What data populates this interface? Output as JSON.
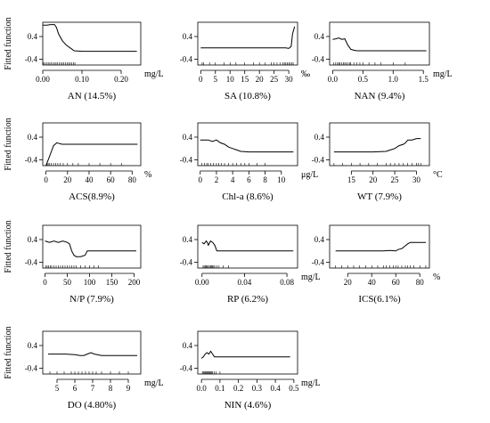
{
  "chart_data": [
    {
      "type": "line",
      "title": "AN (14.5%)",
      "unit": "mg/L",
      "ylabel": "Fitted function",
      "xlim": [
        0,
        0.25
      ],
      "ylim": [
        -0.6,
        0.9
      ],
      "xticks": [
        "0.00",
        "0.10",
        "0.20"
      ],
      "xtick_values": [
        0,
        0.1,
        0.2
      ],
      "yticks": [
        "-0.4",
        "0.4"
      ],
      "ytick_values": [
        -0.4,
        0.4
      ],
      "x": [
        0.0,
        0.01,
        0.02,
        0.03,
        0.035,
        0.04,
        0.05,
        0.06,
        0.07,
        0.08,
        0.1,
        0.15,
        0.2,
        0.24
      ],
      "y": [
        0.8,
        0.8,
        0.82,
        0.82,
        0.72,
        0.5,
        0.25,
        0.1,
        0.0,
        -0.1,
        -0.12,
        -0.12,
        -0.12,
        -0.12
      ],
      "rug": [
        0.002,
        0.006,
        0.01,
        0.014,
        0.018,
        0.022,
        0.026,
        0.03,
        0.034,
        0.038,
        0.042,
        0.046,
        0.05,
        0.054,
        0.058,
        0.062,
        0.066,
        0.07,
        0.074,
        0.078,
        0.082
      ]
    },
    {
      "type": "line",
      "title": "SA (10.8%)",
      "unit": "‰",
      "ylabel": "",
      "xlim": [
        -1,
        33
      ],
      "ylim": [
        -0.6,
        0.9
      ],
      "xticks": [
        "0",
        "5",
        "10",
        "15",
        "20",
        "25",
        "30"
      ],
      "xtick_values": [
        0,
        5,
        10,
        15,
        20,
        25,
        30
      ],
      "yticks": [
        "-0.4",
        "0.4"
      ],
      "ytick_values": [
        -0.4,
        0.4
      ],
      "x": [
        0,
        5,
        10,
        15,
        20,
        25,
        29,
        30,
        30.8,
        31.3,
        32
      ],
      "y": [
        0.0,
        0.0,
        0.0,
        0.0,
        0.0,
        0.0,
        0.0,
        -0.02,
        0.05,
        0.5,
        0.75
      ],
      "rug": [
        0.5,
        1,
        3,
        5,
        8,
        10,
        12,
        15,
        18,
        20,
        22,
        24,
        25,
        26,
        27,
        28,
        28.5,
        29,
        29.5,
        30,
        30.5,
        31,
        31.5
      ]
    },
    {
      "type": "line",
      "title": "NAN (9.4%)",
      "unit": "mg/L",
      "ylabel": "",
      "xlim": [
        -0.05,
        1.6
      ],
      "ylim": [
        -0.6,
        0.9
      ],
      "xticks": [
        "0.0",
        "0.5",
        "1.0",
        "1.5"
      ],
      "xtick_values": [
        0,
        0.5,
        1.0,
        1.5
      ],
      "yticks": [
        "-0.4",
        "0.4"
      ],
      "ytick_values": [
        -0.4,
        0.4
      ],
      "x": [
        0.0,
        0.05,
        0.1,
        0.15,
        0.2,
        0.25,
        0.3,
        0.35,
        0.4,
        0.5,
        1.0,
        1.55
      ],
      "y": [
        0.3,
        0.32,
        0.35,
        0.3,
        0.32,
        0.1,
        -0.05,
        -0.08,
        -0.1,
        -0.1,
        -0.1,
        -0.1
      ],
      "rug": [
        0.02,
        0.05,
        0.08,
        0.1,
        0.12,
        0.15,
        0.18,
        0.2,
        0.22,
        0.25,
        0.28,
        0.3,
        0.35,
        0.4,
        0.45,
        0.5,
        0.6,
        0.7,
        0.8,
        1.0,
        1.2
      ]
    },
    {
      "type": "line",
      "title": "ACS(8.9%)",
      "unit": "%",
      "ylabel": "Fitted function",
      "xlim": [
        -3,
        88
      ],
      "ylim": [
        -0.6,
        0.9
      ],
      "xticks": [
        "0",
        "20",
        "40",
        "60",
        "80"
      ],
      "xtick_values": [
        0,
        20,
        40,
        60,
        80
      ],
      "yticks": [
        "-0.4",
        "0.4"
      ],
      "ytick_values": [
        -0.4,
        0.4
      ],
      "x": [
        0,
        1,
        3,
        5,
        7,
        10,
        15,
        20,
        40,
        60,
        85
      ],
      "y": [
        -0.6,
        -0.5,
        -0.3,
        -0.1,
        0.1,
        0.2,
        0.15,
        0.15,
        0.15,
        0.15,
        0.15
      ],
      "rug": [
        1,
        2,
        3,
        5,
        7,
        9,
        11,
        13,
        16,
        20,
        25,
        30,
        40,
        50,
        60,
        70
      ]
    },
    {
      "type": "line",
      "title": "Chl-a (8.6%)",
      "unit": "μg/L",
      "ylabel": "",
      "xlim": [
        -0.3,
        12
      ],
      "ylim": [
        -0.6,
        0.9
      ],
      "xticks": [
        "0",
        "2",
        "4",
        "6",
        "8",
        "10"
      ],
      "xtick_values": [
        0,
        2,
        4,
        6,
        8,
        10
      ],
      "yticks": [
        "-0.4",
        "0.4"
      ],
      "ytick_values": [
        -0.4,
        0.4
      ],
      "x": [
        0,
        1,
        1.5,
        2,
        2.5,
        3,
        3.5,
        4,
        4.5,
        5,
        6,
        8,
        11.5
      ],
      "y": [
        0.3,
        0.3,
        0.25,
        0.3,
        0.2,
        0.15,
        0.05,
        0.0,
        -0.05,
        -0.1,
        -0.12,
        -0.12,
        -0.12
      ],
      "rug": [
        0.2,
        0.5,
        0.8,
        1.0,
        1.3,
        1.6,
        2.0,
        2.3,
        2.6,
        3.0,
        3.5,
        4.0,
        4.5,
        5.0,
        5.5,
        6.0,
        7.0,
        8.0
      ]
    },
    {
      "type": "line",
      "title": "WT (7.9%)",
      "unit": "°C",
      "ylabel": "",
      "xlim": [
        10,
        33
      ],
      "ylim": [
        -0.6,
        0.9
      ],
      "xticks": [
        "15",
        "20",
        "25",
        "30"
      ],
      "xtick_values": [
        15,
        20,
        25,
        30
      ],
      "yticks": [
        "-0.4",
        "0.4"
      ],
      "ytick_values": [
        -0.4,
        0.4
      ],
      "x": [
        11,
        15,
        20,
        23,
        24,
        25,
        26,
        27,
        27.5,
        28,
        29,
        30,
        31
      ],
      "y": [
        -0.12,
        -0.12,
        -0.12,
        -0.1,
        -0.05,
        0.0,
        0.1,
        0.15,
        0.2,
        0.3,
        0.3,
        0.35,
        0.35
      ],
      "rug": [
        11,
        13,
        15,
        17,
        19,
        21,
        23,
        24,
        25,
        26,
        27,
        28,
        29,
        30,
        30.5,
        31
      ]
    },
    {
      "type": "line",
      "title": "N/P (7.9%)",
      "unit": "",
      "ylabel": "Fitted function",
      "xlim": [
        -5,
        215
      ],
      "ylim": [
        -0.6,
        0.9
      ],
      "xticks": [
        "0",
        "50",
        "100",
        "150",
        "200"
      ],
      "xtick_values": [
        0,
        50,
        100,
        150,
        200
      ],
      "yticks": [
        "-0.4",
        "0.4"
      ],
      "ytick_values": [
        -0.4,
        0.4
      ],
      "x": [
        0,
        10,
        20,
        30,
        40,
        50,
        55,
        60,
        65,
        70,
        80,
        90,
        95,
        100,
        150,
        205
      ],
      "y": [
        0.35,
        0.3,
        0.35,
        0.3,
        0.35,
        0.3,
        0.25,
        0.0,
        -0.15,
        -0.2,
        -0.2,
        -0.15,
        0.0,
        0.0,
        0.0,
        0.0
      ],
      "rug": [
        2,
        5,
        8,
        12,
        15,
        20,
        25,
        30,
        35,
        40,
        45,
        50,
        55,
        60,
        65,
        70,
        80,
        90,
        100,
        110,
        120
      ]
    },
    {
      "type": "line",
      "title": "RP (6.2%)",
      "unit": "mg/L",
      "ylabel": "",
      "xlim": [
        -0.004,
        0.09
      ],
      "ylim": [
        -0.6,
        0.9
      ],
      "xticks": [
        "0.00",
        "0.04",
        "0.08"
      ],
      "xtick_values": [
        0,
        0.04,
        0.08
      ],
      "yticks": [
        "-0.4",
        "0.4"
      ],
      "ytick_values": [
        -0.4,
        0.4
      ],
      "x": [
        0.0,
        0.002,
        0.004,
        0.005,
        0.006,
        0.008,
        0.01,
        0.012,
        0.014,
        0.02,
        0.04,
        0.086
      ],
      "y": [
        0.3,
        0.25,
        0.35,
        0.3,
        0.2,
        0.35,
        0.3,
        0.2,
        0.0,
        0.0,
        0.0,
        0.0
      ],
      "rug": [
        0.001,
        0.002,
        0.003,
        0.004,
        0.005,
        0.006,
        0.007,
        0.008,
        0.009,
        0.01,
        0.011,
        0.012,
        0.014,
        0.016,
        0.02,
        0.025
      ]
    },
    {
      "type": "line",
      "title": "ICS(6.1%)",
      "unit": "%",
      "ylabel": "",
      "xlim": [
        5,
        88
      ],
      "ylim": [
        -0.6,
        0.9
      ],
      "xticks": [
        "20",
        "40",
        "60",
        "80"
      ],
      "xtick_values": [
        20,
        40,
        60,
        80
      ],
      "yticks": [
        "-0.4",
        "0.4"
      ],
      "ytick_values": [
        -0.4,
        0.4
      ],
      "x": [
        10,
        20,
        30,
        40,
        50,
        55,
        60,
        62,
        65,
        67,
        70,
        72,
        75,
        80,
        85
      ],
      "y": [
        0.0,
        0.0,
        0.0,
        0.0,
        0.0,
        0.02,
        0.0,
        0.05,
        0.08,
        0.15,
        0.25,
        0.3,
        0.3,
        0.3,
        0.3
      ],
      "rug": [
        10,
        15,
        20,
        25,
        30,
        35,
        40,
        45,
        50,
        52,
        55,
        58,
        60,
        62,
        65,
        68,
        70,
        72,
        75,
        80,
        85
      ]
    },
    {
      "type": "line",
      "title": "DO (4.80%)",
      "unit": "mg/L",
      "ylabel": "Fitted function",
      "xlim": [
        4.2,
        9.7
      ],
      "ylim": [
        -0.6,
        0.9
      ],
      "xticks": [
        "5",
        "6",
        "7",
        "8",
        "9"
      ],
      "xtick_values": [
        5,
        6,
        7,
        8,
        9
      ],
      "yticks": [
        "-0.4",
        "0.4"
      ],
      "ytick_values": [
        -0.4,
        0.4
      ],
      "x": [
        4.5,
        5,
        5.5,
        6,
        6.3,
        6.5,
        6.7,
        6.9,
        7.1,
        7.5,
        8,
        9,
        9.5
      ],
      "y": [
        0.1,
        0.1,
        0.1,
        0.08,
        0.05,
        0.05,
        0.1,
        0.15,
        0.1,
        0.05,
        0.05,
        0.05,
        0.05
      ],
      "rug": [
        4.6,
        5.0,
        5.4,
        5.8,
        6.0,
        6.2,
        6.4,
        6.6,
        6.8,
        7.0,
        7.2,
        7.5,
        8.0,
        8.5,
        9.0
      ]
    },
    {
      "type": "line",
      "title": "NIN (4.6%)",
      "unit": "mg/L",
      "ylabel": "",
      "xlim": [
        -0.02,
        0.52
      ],
      "ylim": [
        -0.6,
        0.9
      ],
      "xticks": [
        "0.0",
        "0.1",
        "0.2",
        "0.3",
        "0.4",
        "0.5"
      ],
      "xtick_values": [
        0,
        0.1,
        0.2,
        0.3,
        0.4,
        0.5
      ],
      "yticks": [
        "-0.4",
        "0.4"
      ],
      "ytick_values": [
        -0.4,
        0.4
      ],
      "x": [
        0.0,
        0.01,
        0.02,
        0.03,
        0.04,
        0.05,
        0.06,
        0.07,
        0.1,
        0.2,
        0.3,
        0.4,
        0.48
      ],
      "y": [
        -0.05,
        0.0,
        0.1,
        0.15,
        0.1,
        0.2,
        0.1,
        0.0,
        0.0,
        0.0,
        0.0,
        0.0,
        0.0
      ],
      "rug": [
        0.005,
        0.01,
        0.015,
        0.02,
        0.025,
        0.03,
        0.035,
        0.04,
        0.045,
        0.05,
        0.055,
        0.06,
        0.07,
        0.08,
        0.1
      ]
    }
  ]
}
